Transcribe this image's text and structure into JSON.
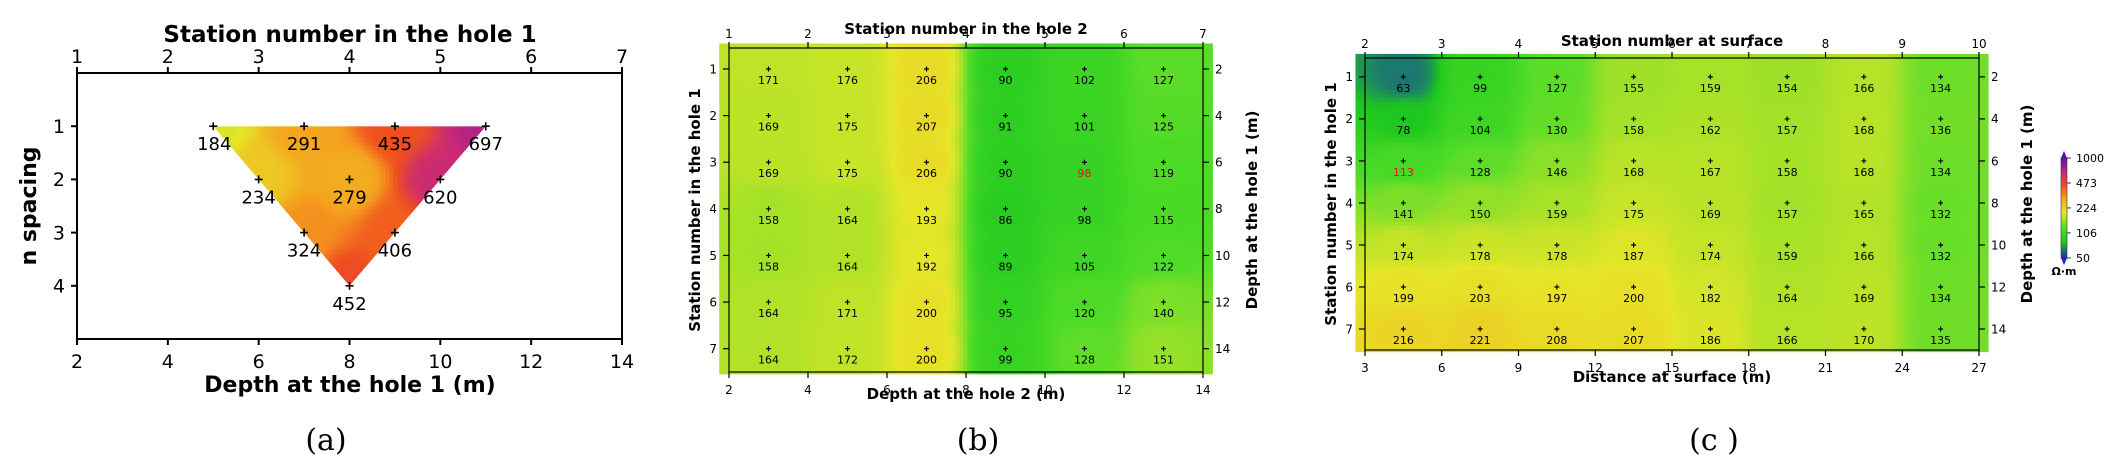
{
  "chart_data": [
    {
      "panel": "a",
      "type": "heatmap",
      "caption": "(a)",
      "title": "Station number in the hole 1",
      "xlabel": "Depth at the hole 1 (m)",
      "ylabel": "n spacing",
      "top_ticks": [
        "1",
        "2",
        "3",
        "4",
        "5",
        "6",
        "7"
      ],
      "top_range": [
        1,
        7
      ],
      "bottom_ticks": [
        "2",
        "4",
        "6",
        "8",
        "10",
        "12",
        "14"
      ],
      "x_range": [
        2,
        14
      ],
      "left_ticks": [
        "1",
        "2",
        "3",
        "4"
      ],
      "y_range": [
        0,
        5
      ],
      "points": [
        {
          "x": 5,
          "n": 1,
          "value": 184,
          "label": "184"
        },
        {
          "x": 7,
          "n": 1,
          "value": 291,
          "label": "291"
        },
        {
          "x": 9,
          "n": 1,
          "value": 435,
          "label": "435"
        },
        {
          "x": 11,
          "n": 1,
          "value": 697,
          "label": "697"
        },
        {
          "x": 6,
          "n": 2,
          "value": 234,
          "label": "234"
        },
        {
          "x": 8,
          "n": 2,
          "value": 279,
          "label": "279"
        },
        {
          "x": 10,
          "n": 2,
          "value": 620,
          "label": "620"
        },
        {
          "x": 7,
          "n": 3,
          "value": 324,
          "label": "324"
        },
        {
          "x": 9,
          "n": 3,
          "value": 406,
          "label": "406"
        },
        {
          "x": 8,
          "n": 4,
          "value": 452,
          "label": "452"
        }
      ]
    },
    {
      "panel": "b",
      "type": "heatmap",
      "caption": "(b)",
      "title": "Station number in the hole 2",
      "xlabel": "Depth at the hole 2 (m)",
      "ylabel": "Station number in the hole 1",
      "right_label": "Depth at the hole 1 (m)",
      "top_ticks": [
        "1",
        "2",
        "3",
        "4",
        "5",
        "6",
        "7"
      ],
      "top_range": [
        1,
        7
      ],
      "bottom_ticks": [
        "2",
        "4",
        "6",
        "8",
        "10",
        "12",
        "14"
      ],
      "x_range": [
        2,
        14
      ],
      "left_ticks": [
        "1",
        "2",
        "3",
        "4",
        "5",
        "6",
        "7"
      ],
      "right_ticks": [
        "2",
        "4",
        "6",
        "8",
        "10",
        "12",
        "14"
      ],
      "y_range": [
        0.55,
        7.5
      ],
      "x_positions": [
        3,
        5,
        7,
        9,
        11,
        13
      ],
      "rows": [
        1,
        2,
        3,
        4,
        5,
        6,
        7
      ],
      "values": [
        [
          171,
          176,
          206,
          90,
          102,
          127
        ],
        [
          169,
          175,
          207,
          91,
          101,
          125
        ],
        [
          169,
          175,
          206,
          90,
          98,
          119
        ],
        [
          158,
          164,
          193,
          86,
          98,
          115
        ],
        [
          158,
          164,
          192,
          89,
          105,
          122
        ],
        [
          164,
          171,
          200,
          95,
          120,
          140
        ],
        [
          164,
          172,
          200,
          99,
          128,
          151
        ]
      ],
      "highlight": {
        "row": 3,
        "col": 5,
        "color": "#e8141c"
      }
    },
    {
      "panel": "c",
      "type": "heatmap",
      "caption": "(c )",
      "title": "Station number at surface",
      "xlabel": "Distance at surface (m)",
      "ylabel": "Station number in the hole 1",
      "right_label": "Depth at the hole 1 (m)",
      "top_ticks": [
        "2",
        "3",
        "4",
        "5",
        "6",
        "7",
        "8",
        "9",
        "10"
      ],
      "top_range": [
        2,
        10
      ],
      "bottom_ticks": [
        "3",
        "6",
        "9",
        "12",
        "15",
        "18",
        "21",
        "24",
        "27"
      ],
      "x_range": [
        3,
        27
      ],
      "left_ticks": [
        "1",
        "2",
        "3",
        "4",
        "5",
        "6",
        "7"
      ],
      "right_ticks": [
        "2",
        "4",
        "6",
        "8",
        "10",
        "12",
        "14"
      ],
      "y_range": [
        0.55,
        7.5
      ],
      "x_positions": [
        4.5,
        7.5,
        10.5,
        13.5,
        16.5,
        19.5,
        22.5,
        25.5
      ],
      "rows": [
        1,
        2,
        3,
        4,
        5,
        6,
        7
      ],
      "values": [
        [
          63,
          99,
          127,
          155,
          159,
          154,
          166,
          134
        ],
        [
          78,
          104,
          130,
          158,
          162,
          157,
          168,
          136
        ],
        [
          113,
          128,
          146,
          168,
          167,
          158,
          168,
          134
        ],
        [
          141,
          150,
          159,
          175,
          169,
          157,
          165,
          132
        ],
        [
          174,
          178,
          178,
          187,
          174,
          159,
          166,
          132
        ],
        [
          199,
          203,
          197,
          200,
          182,
          164,
          169,
          134
        ],
        [
          216,
          221,
          208,
          207,
          186,
          166,
          170,
          135
        ]
      ],
      "highlight": {
        "row": 3,
        "col": 1,
        "color": "#e8141c"
      }
    }
  ],
  "colorbar": {
    "ticks": [
      "1000",
      "473",
      "224",
      "106",
      "50"
    ],
    "unit": "Ω·m",
    "range": [
      50,
      1000
    ],
    "scale": "log",
    "stops": [
      {
        "t": 0.0,
        "color": "#1a22c8"
      },
      {
        "t": 0.15,
        "color": "#1ec81e"
      },
      {
        "t": 0.3,
        "color": "#50dc28"
      },
      {
        "t": 0.45,
        "color": "#e6e628"
      },
      {
        "t": 0.6,
        "color": "#f5a01e"
      },
      {
        "t": 0.72,
        "color": "#f0501e"
      },
      {
        "t": 0.85,
        "color": "#c82878"
      },
      {
        "t": 1.0,
        "color": "#5a14aa"
      }
    ]
  }
}
